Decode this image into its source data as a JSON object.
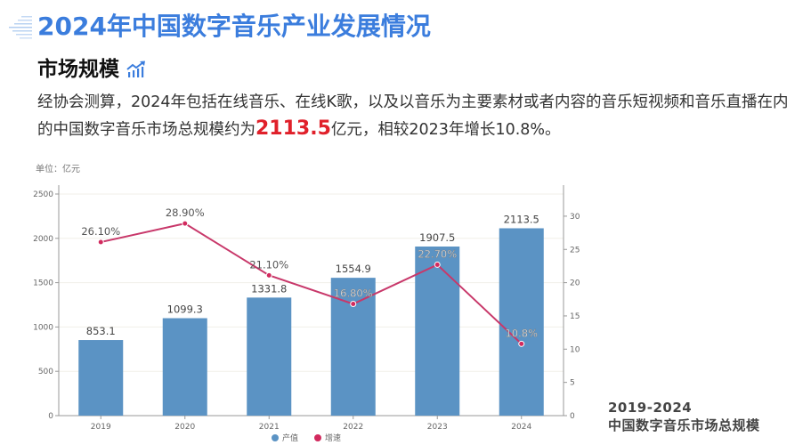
{
  "header": {
    "title": "2024年中国数字音乐产业发展情况",
    "subtitle": "市场规模",
    "subtitle_icon": "trending-chart-icon"
  },
  "paragraph": {
    "part1": "经协会测算，2024年包括在线音乐、在线K歌，以及以音乐为主要素材或者内容的音乐短视频和音乐直播在内的中国数字音乐市场总规模约为",
    "highlight": "2113.5",
    "part2": "亿元，相较2023年增长10.8%。"
  },
  "colors": {
    "title_blue": "#3b7ddd",
    "bar": "#5b93c4",
    "line": "#c8386a",
    "highlight_red": "#e0202a"
  },
  "chart_data": {
    "type": "bar",
    "title": "2019-2024 中国数字音乐市场总规模",
    "unit_label": "单位：亿元",
    "categories": [
      "2019",
      "2020",
      "2021",
      "2022",
      "2023",
      "2024"
    ],
    "series": [
      {
        "name": "产值",
        "type": "bar",
        "axis": "left",
        "values": [
          853.1,
          1099.3,
          1331.8,
          1554.9,
          1907.5,
          2113.5
        ],
        "labels": [
          "853.1",
          "1099.3",
          "1331.8",
          "1554.9",
          "1907.5",
          "2113.5"
        ]
      },
      {
        "name": "增速",
        "type": "line",
        "axis": "right",
        "values": [
          26.1,
          28.9,
          21.1,
          16.8,
          22.7,
          10.8
        ],
        "labels": [
          "26.10%",
          "28.90%",
          "21.10%",
          "16.80%",
          "22.70%",
          "10.8%"
        ]
      }
    ],
    "left_axis": {
      "ticks": [
        "0",
        "500",
        "1000",
        "1500",
        "2000",
        "2500"
      ],
      "range": [
        0,
        2500
      ]
    },
    "right_axis": {
      "ticks": [
        "0",
        "5",
        "10",
        "15",
        "20",
        "25",
        "30"
      ],
      "range": [
        0,
        35
      ]
    },
    "legend": [
      "产值",
      "增速"
    ],
    "legend_position": "bottom",
    "grid": true
  },
  "caption": {
    "line1": "2019-2024",
    "line2": "中国数字音乐市场总规模"
  }
}
